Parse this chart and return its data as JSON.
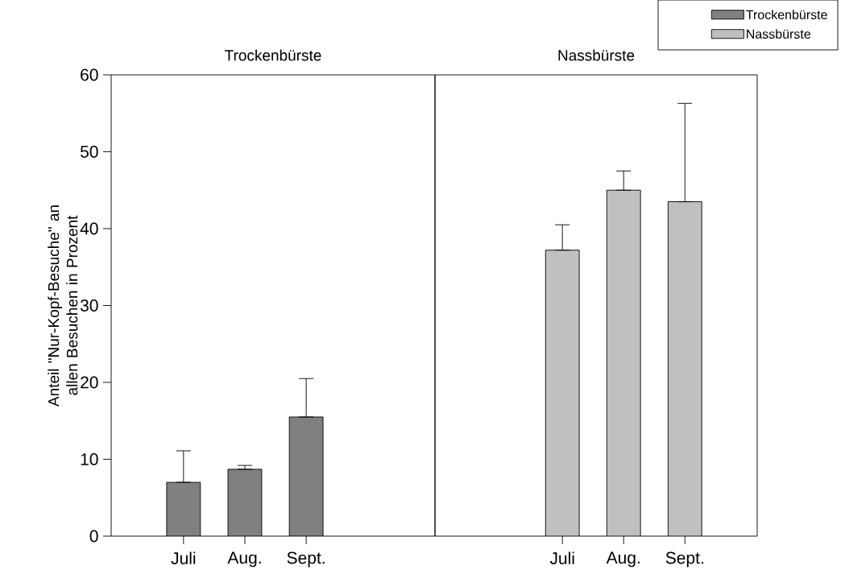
{
  "chart_data": [
    {
      "type": "bar",
      "title": "Trockenbürste",
      "ylabel": "Anteil \"Nur-Kopf-Besuche\" an allen Besuchen in Prozent",
      "categories": [
        "Juli",
        "Aug.",
        "Sept."
      ],
      "series": [
        {
          "name": "Trockenbürste",
          "color": "#808080",
          "values": [
            7.0,
            8.7,
            15.5
          ],
          "errors": [
            [
              7.0,
              11.1
            ],
            [
              8.7,
              9.2
            ],
            [
              15.5,
              20.5
            ]
          ]
        }
      ],
      "ylim": [
        0,
        60
      ],
      "yticks": [
        0,
        10,
        20,
        30,
        40,
        50,
        60
      ],
      "legend": "top right"
    },
    {
      "type": "bar",
      "title": "Nassbürste",
      "categories": [
        "Juli",
        "Aug.",
        "Sept."
      ],
      "series": [
        {
          "name": "Nassbürste",
          "color": "#c0c0c0",
          "values": [
            37.2,
            45.0,
            43.5
          ],
          "errors": [
            [
              37.2,
              40.5
            ],
            [
              45.0,
              47.5
            ],
            [
              43.5,
              56.3
            ]
          ]
        }
      ],
      "ylim": [
        0,
        60
      ],
      "yticks": [
        0,
        10,
        20,
        30,
        40,
        50,
        60
      ],
      "tick_labels": "x",
      "legend": "top right"
    }
  ]
}
